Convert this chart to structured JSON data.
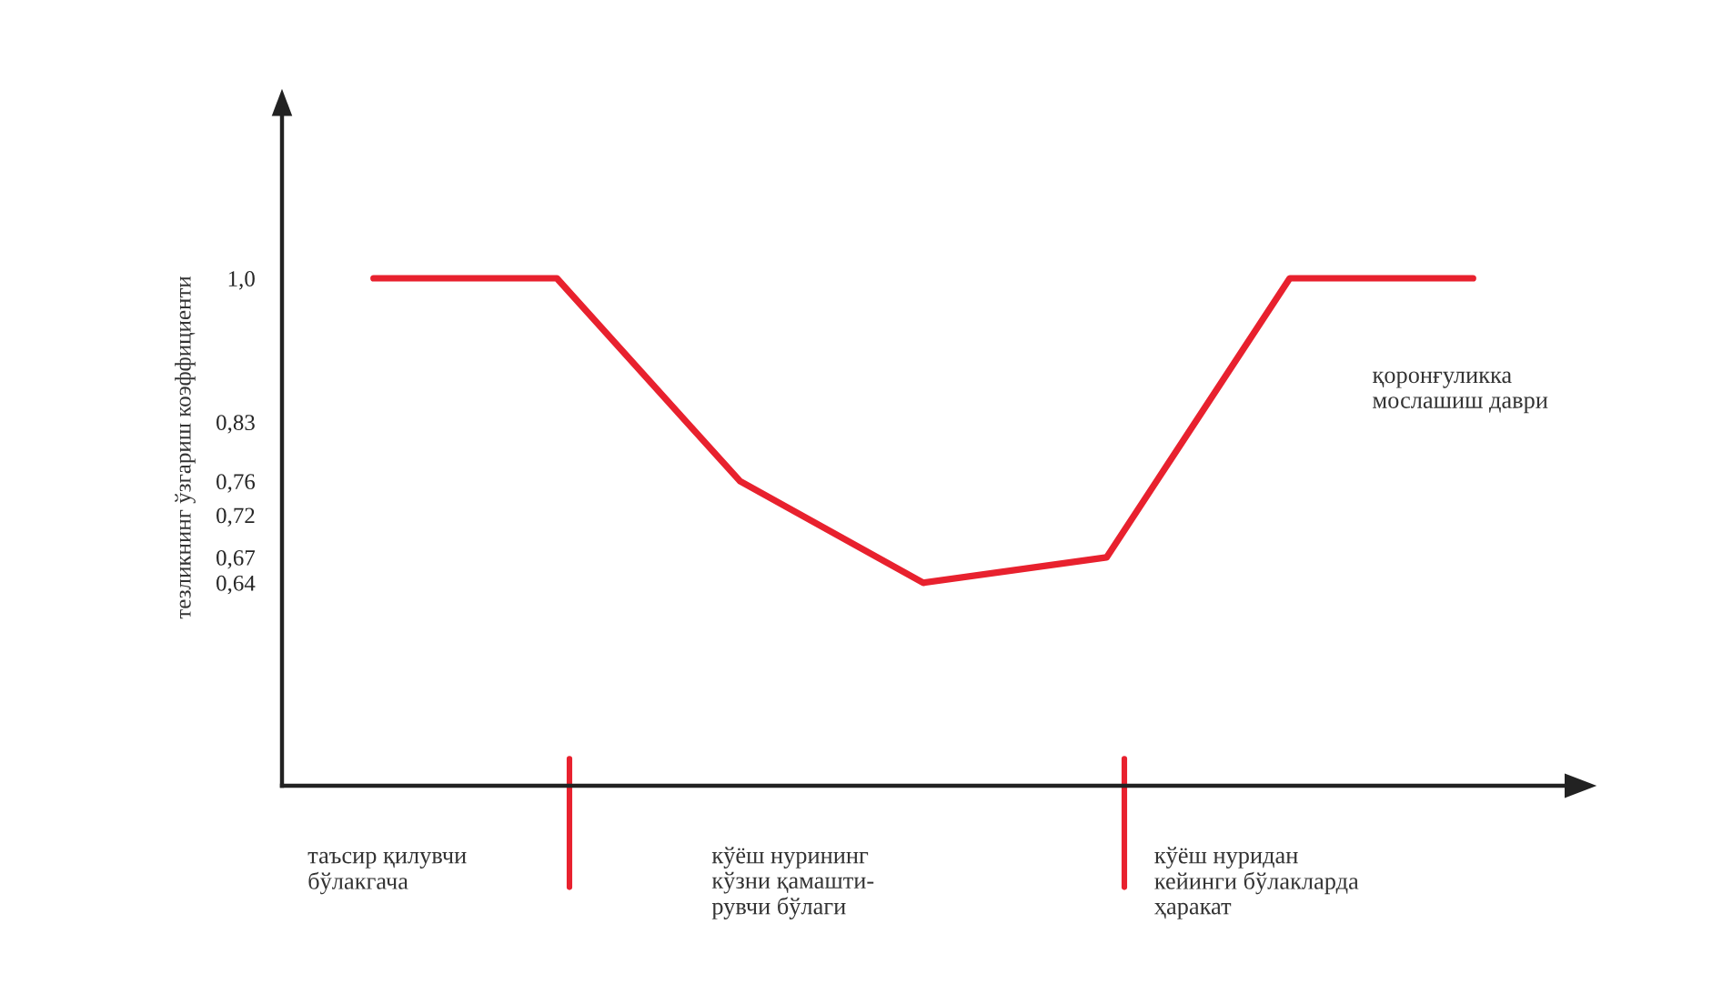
{
  "chart_data": {
    "type": "line",
    "ylabel": "тезликнинг ўзгариш коэффициенти",
    "categories": [
      null,
      null,
      null,
      null,
      null,
      null,
      null
    ],
    "series": [
      {
        "color": "#e8212e",
        "values": [
          1.0,
          1.0,
          0.76,
          0.64,
          0.67,
          1.0,
          1.0
        ]
      }
    ],
    "ylim": [
      0.4,
      1.2
    ],
    "yticks": [
      {
        "value": 1.0,
        "label": "1,0"
      },
      {
        "value": 0.83,
        "label": "0,83"
      },
      {
        "value": 0.76,
        "label": "0,76"
      },
      {
        "value": 0.72,
        "label": "0,72"
      },
      {
        "value": 0.67,
        "label": "0,67"
      },
      {
        "value": 0.64,
        "label": "0,64"
      }
    ],
    "tick_labels": "y",
    "grid": false,
    "legend": false,
    "marker": "none",
    "line_style": "solid",
    "annotations": [
      "таъсир қилувчи\nбўлакгача",
      "кўёш нурининг\nкўзни қамашти-\nрувчи бўлаги",
      "кўёш нуридан\nкейинги бўлакларда\nҳаракат",
      "қоронғуликка\nмослашиш даври"
    ]
  }
}
